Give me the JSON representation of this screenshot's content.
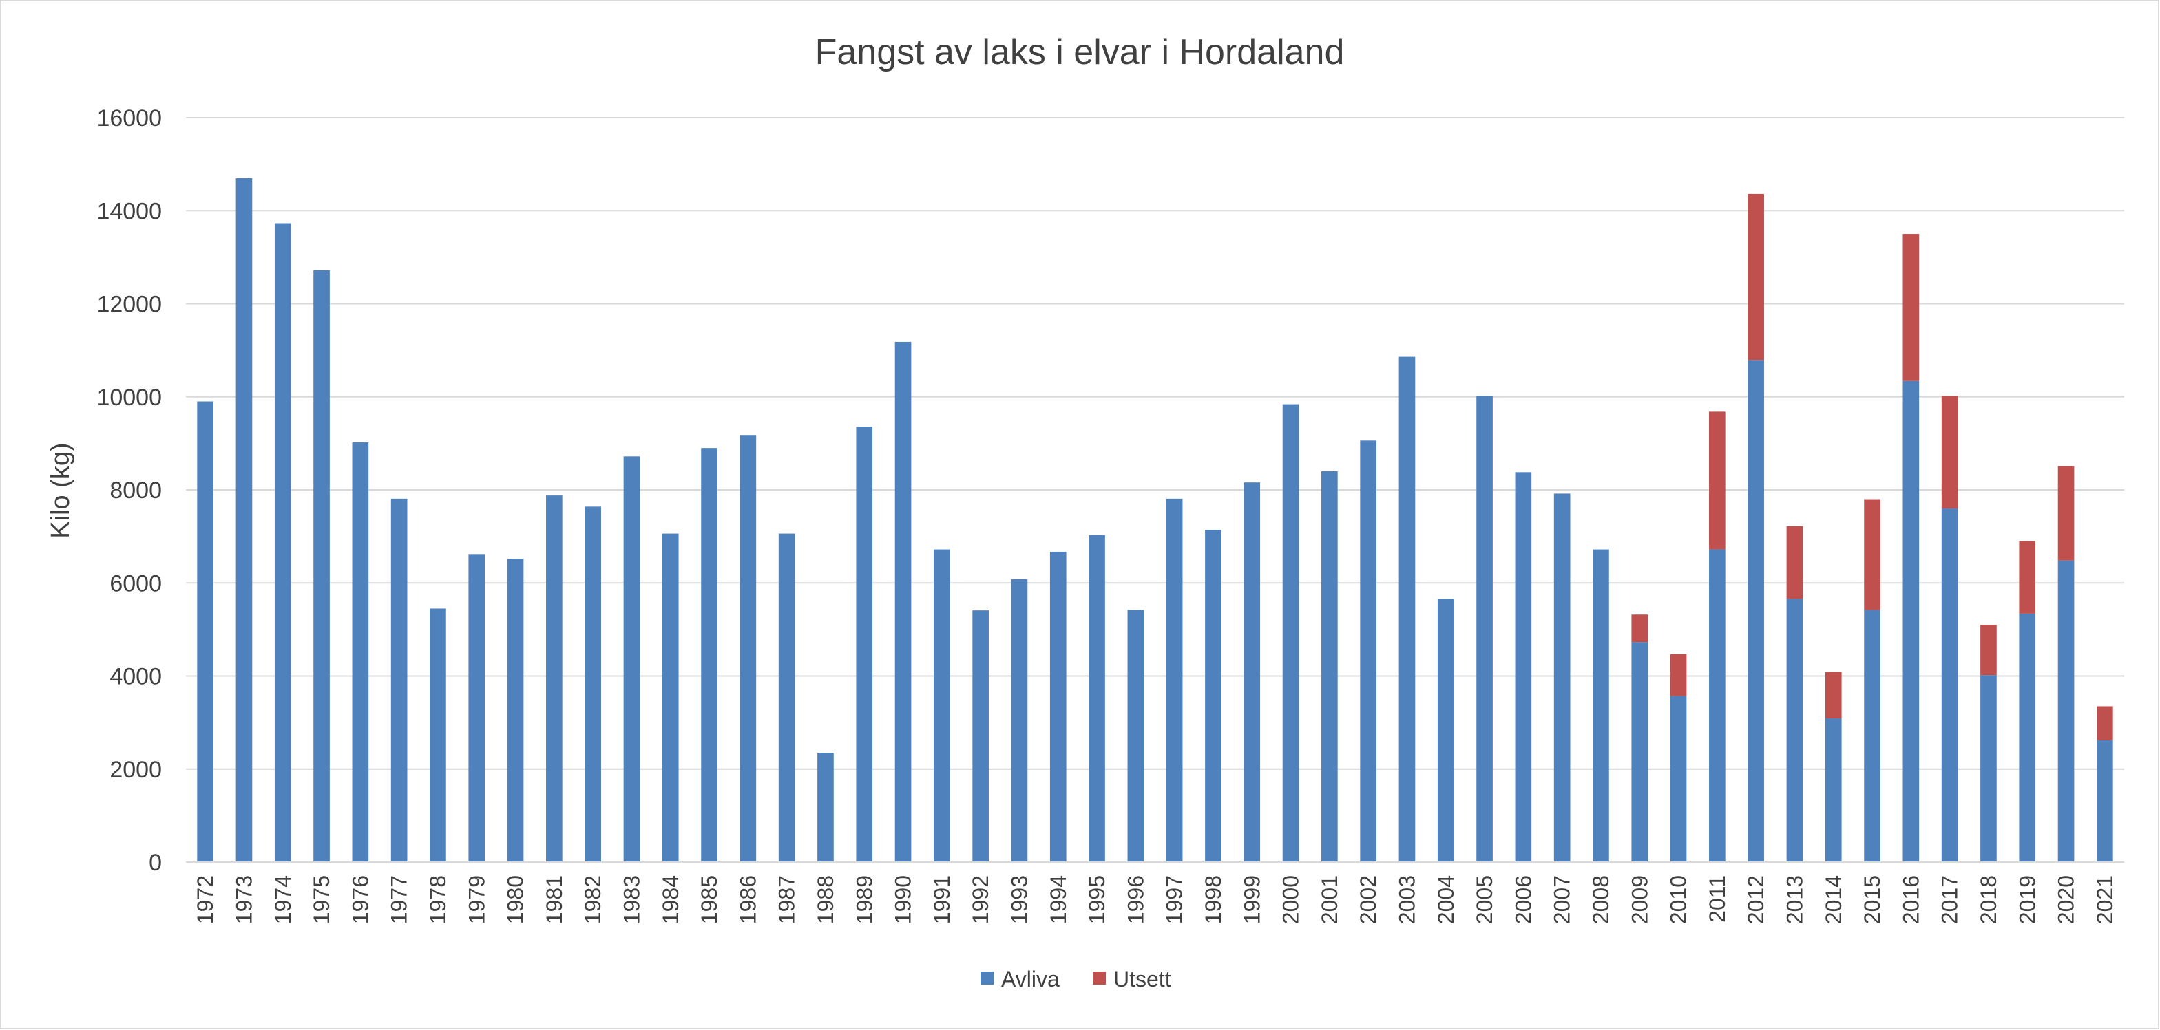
{
  "chart_data": {
    "type": "bar",
    "stacked": true,
    "title": "Fangst av laks i elvar i Hordaland",
    "xlabel": "",
    "ylabel": "Kilo (kg)",
    "ylim": [
      0,
      16000
    ],
    "yticks": [
      0,
      2000,
      4000,
      6000,
      8000,
      10000,
      12000,
      14000,
      16000
    ],
    "grid": "horizontal",
    "legend_position": "bottom-center",
    "categories": [
      "1972",
      "1973",
      "1974",
      "1975",
      "1976",
      "1977",
      "1978",
      "1979",
      "1980",
      "1981",
      "1982",
      "1983",
      "1984",
      "1985",
      "1986",
      "1987",
      "1988",
      "1989",
      "1990",
      "1991",
      "1992",
      "1993",
      "1994",
      "1995",
      "1996",
      "1997",
      "1998",
      "1999",
      "2000",
      "2001",
      "2002",
      "2003",
      "2004",
      "2005",
      "2006",
      "2007",
      "2008",
      "2009",
      "2010",
      "2011",
      "2012",
      "2013",
      "2014",
      "2015",
      "2016",
      "2017",
      "2018",
      "2019",
      "2020",
      "2021"
    ],
    "series": [
      {
        "name": "Avliva",
        "color": "#4f81bd",
        "values": [
          9900,
          14700,
          13730,
          12720,
          9020,
          7810,
          5450,
          6620,
          6520,
          7880,
          7640,
          8720,
          7060,
          8900,
          9180,
          7060,
          2350,
          9360,
          11180,
          6720,
          5410,
          6080,
          6670,
          7030,
          5420,
          7810,
          7140,
          8160,
          9840,
          8400,
          9060,
          10860,
          5660,
          10020,
          8380,
          7920,
          6720,
          4730,
          3570,
          6720,
          10790,
          5660,
          3090,
          5420,
          10340,
          7600,
          4020,
          5340,
          6480,
          2620
        ]
      },
      {
        "name": "Utsett",
        "color": "#c0504d",
        "values": [
          0,
          0,
          0,
          0,
          0,
          0,
          0,
          0,
          0,
          0,
          0,
          0,
          0,
          0,
          0,
          0,
          0,
          0,
          0,
          0,
          0,
          0,
          0,
          0,
          0,
          0,
          0,
          0,
          0,
          0,
          0,
          0,
          0,
          0,
          0,
          0,
          0,
          590,
          900,
          2960,
          3570,
          1560,
          1000,
          2380,
          3160,
          2420,
          1080,
          1560,
          2030,
          730
        ]
      }
    ]
  }
}
